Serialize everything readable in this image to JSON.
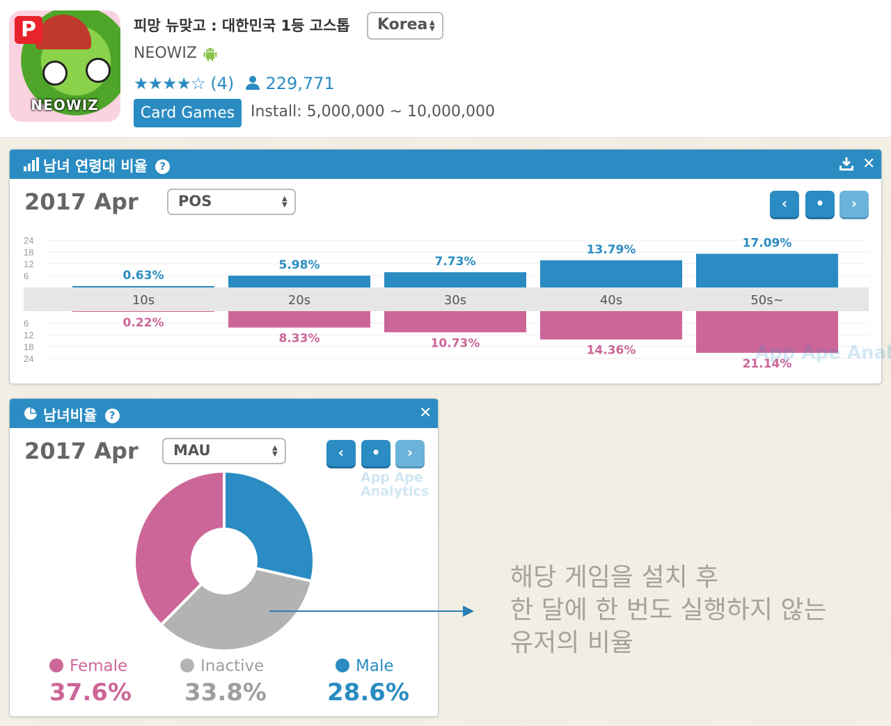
{
  "app": {
    "title": "피망 뉴맞고 : 대한민국 1등 고스톱",
    "developer": "NEOWIZ",
    "icon_brand": "NEOWIZ",
    "icon_badge": "P",
    "country": "Korea",
    "stars": "★★★★☆",
    "rating_count": "(4)",
    "users": "229,771",
    "category": "Card Games",
    "install": "Install: 5,000,000 ~ 10,000,000"
  },
  "age_panel": {
    "title": "남녀 연령대 비율",
    "help": "?",
    "period": "2017 Apr",
    "dropdown": "POS",
    "nav": {
      "prev": "‹",
      "current": "•",
      "next": "›"
    },
    "watermark": "App Ape Analytics"
  },
  "pie_panel": {
    "title": "남녀비율",
    "help": "?",
    "period": "2017 Apr",
    "dropdown": "MAU",
    "nav": {
      "prev": "‹",
      "current": "•",
      "next": "›"
    },
    "watermark_line1": "App Ape",
    "watermark_line2": "Analytics",
    "legend": [
      {
        "label": "Female",
        "value": "37.6%"
      },
      {
        "label": "Inactive",
        "value": "33.8%"
      },
      {
        "label": "Male",
        "value": "28.6%"
      }
    ]
  },
  "annotation": {
    "lines": [
      "해당 게임을 설치 후",
      "한 달에 한 번도 실행하지 않는",
      "유저의 비율"
    ]
  },
  "colors": {
    "male": "#2a8cc2",
    "female": "#cc6699",
    "inactive": "#b3b3b3",
    "header": "#2a8cc2"
  },
  "chart_data": [
    {
      "type": "bar",
      "categories": [
        "10s",
        "20s",
        "30s",
        "40s",
        "50s~"
      ],
      "series": [
        {
          "values": [
            0.63,
            5.98,
            7.73,
            13.79,
            17.09
          ],
          "labels": [
            "0.63%",
            "5.98%",
            "7.73%",
            "13.79%",
            "17.09%"
          ],
          "color": "#2a8cc2"
        },
        {
          "values": [
            0.22,
            8.33,
            10.73,
            14.36,
            21.14
          ],
          "labels": [
            "0.22%",
            "8.33%",
            "10.73%",
            "14.36%",
            "21.14%"
          ],
          "color": "#cc6699"
        }
      ],
      "yticks": [
        "24",
        "18",
        "12",
        "6"
      ],
      "ylim": [
        0,
        24
      ],
      "grid": true
    },
    {
      "type": "pie",
      "categories": [
        "Male",
        "Inactive",
        "Female"
      ],
      "values": [
        28.6,
        33.8,
        37.6
      ],
      "colors": [
        "#2a8cc2",
        "#b3b3b3",
        "#cc6699"
      ],
      "donut": true
    }
  ]
}
